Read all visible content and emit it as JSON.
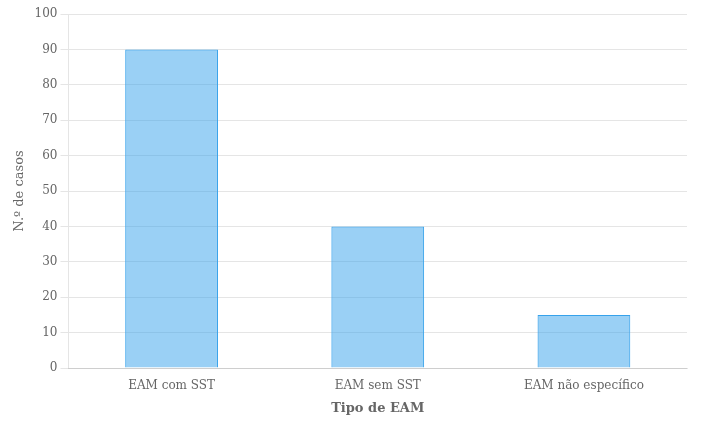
{
  "chart_data": {
    "type": "bar",
    "categories": [
      "EAM com SST",
      "EAM sem SST",
      "EAM não específico"
    ],
    "values": [
      90,
      40,
      15
    ],
    "ylim": [
      0,
      100
    ],
    "yticks": [
      0,
      10,
      20,
      30,
      40,
      50,
      60,
      70,
      80,
      90,
      100
    ],
    "ylabel": "N.º de casos",
    "xlabel": "Tipo de EAM",
    "grid": true
  }
}
